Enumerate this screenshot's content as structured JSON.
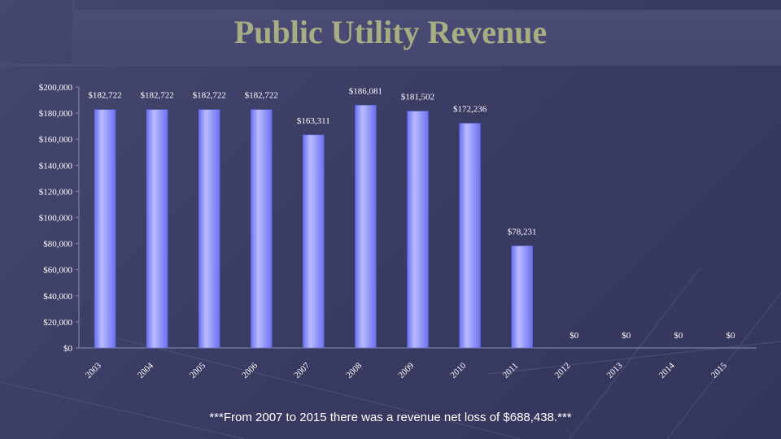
{
  "colors": {
    "background": "#3d3f68",
    "title": "#a8ad82",
    "bar_light": "#b8bcff",
    "bar_dark": "#6a70f0",
    "text": "#ffffff"
  },
  "chart_data": {
    "type": "bar",
    "title": "Public Utility Revenue",
    "categories": [
      "2003",
      "2004",
      "2005",
      "2006",
      "2007",
      "2008",
      "2009",
      "2010",
      "2011",
      "2012",
      "2013",
      "2014",
      "2015"
    ],
    "values": [
      182722,
      182722,
      182722,
      182722,
      163311,
      186081,
      181502,
      172236,
      78231,
      0,
      0,
      0,
      0
    ],
    "data_labels": [
      "$182,722",
      "$182,722",
      "$182,722",
      "$182,722",
      "$163,311",
      "$186,081",
      "$181,502",
      "$172,236",
      "$78,231",
      "$0",
      "$0",
      "$0",
      "$0"
    ],
    "y_ticks": [
      0,
      20000,
      40000,
      60000,
      80000,
      100000,
      120000,
      140000,
      160000,
      180000,
      200000
    ],
    "y_tick_labels": [
      "$0",
      "$20,000",
      "$40,000",
      "$60,000",
      "$80,000",
      "$100,000",
      "$120,000",
      "$140,000",
      "$160,000",
      "$180,000",
      "$200,000"
    ],
    "ylim": [
      0,
      200000
    ],
    "xlabel": "",
    "ylabel": "",
    "grid": false,
    "legend": "none"
  },
  "footnote": "***From 2007 to 2015 there was a revenue net loss of $688,438.***"
}
